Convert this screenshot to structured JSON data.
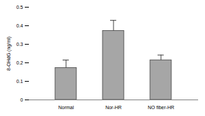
{
  "chart_data": {
    "type": "bar",
    "y_label": "8-OHdG (ng/ml)",
    "categories": [
      "Normal",
      "Nor-HR",
      "NO fiber-HR"
    ],
    "values": [
      0.172,
      0.372,
      0.214
    ],
    "errors": [
      0.043,
      0.057,
      0.028
    ],
    "color": "#a6a6a6",
    "ylim": [
      0,
      0.5
    ],
    "yticks": [
      0,
      0.1,
      0.2,
      0.3,
      0.4,
      0.5
    ],
    "grid": false
  }
}
